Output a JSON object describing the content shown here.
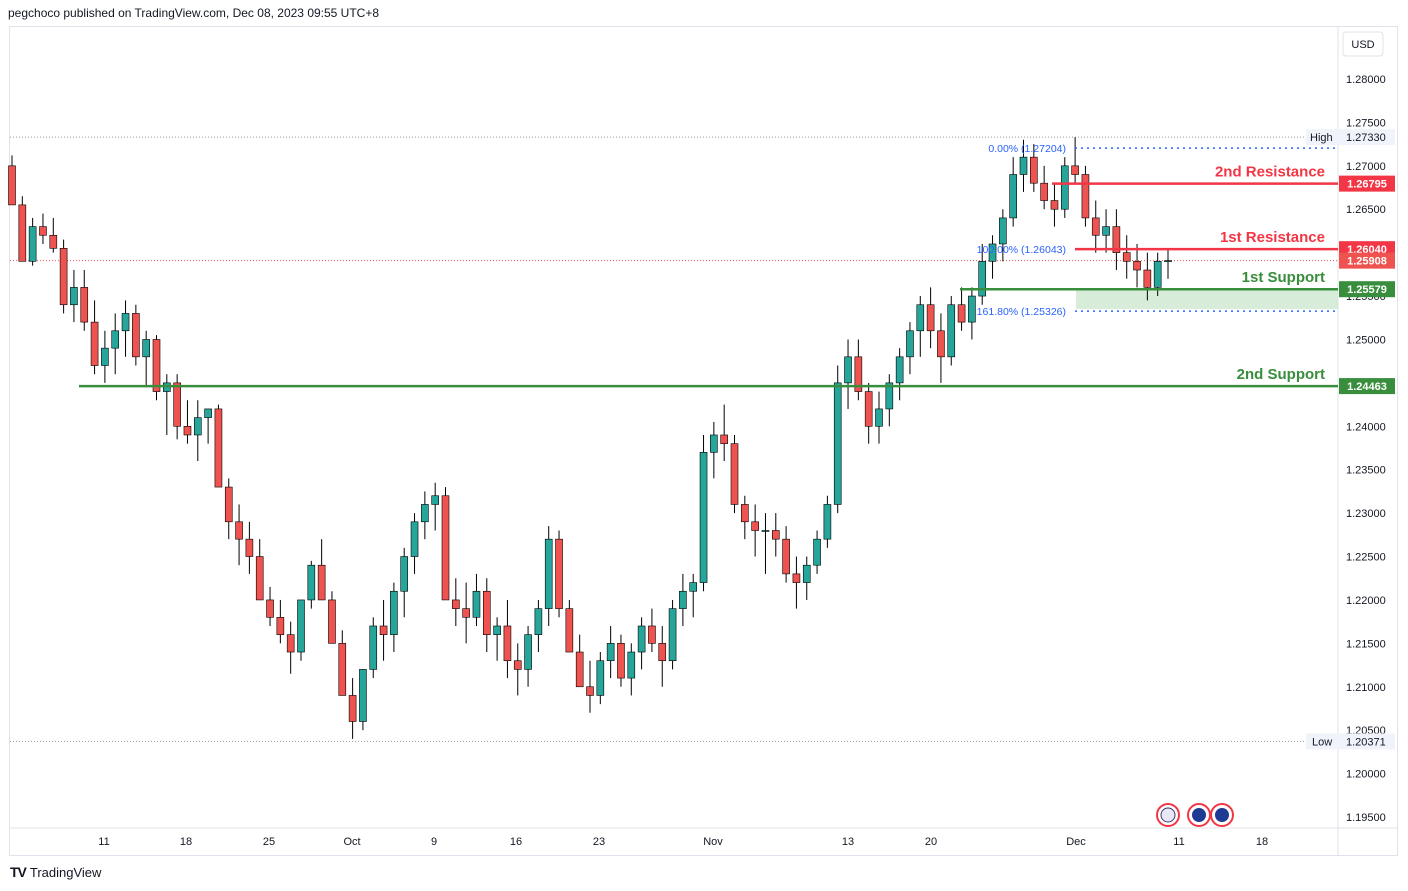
{
  "header": {
    "publisher_line": "pegchoco published on TradingView.com, Dec 08, 2023 09:55 UTC+8"
  },
  "footer": {
    "logo_text": "TradingView"
  },
  "currency_button": "USD",
  "colors": {
    "up": "#26a69a",
    "down": "#ef5350",
    "resistance": "#f23645",
    "support": "#388e3c",
    "fib": "#2962ff",
    "zone": "#c8e6c9",
    "axis_text": "#131722"
  },
  "chart_data": {
    "type": "candlestick",
    "symbol_currency": "USD",
    "ylim": [
      1.1945,
      1.2835
    ],
    "y_ticks": [
      "1.28000",
      "1.27500",
      "1.27000",
      "1.26500",
      "1.26000",
      "1.25500",
      "1.25000",
      "1.24500",
      "1.24000",
      "1.23500",
      "1.23000",
      "1.22500",
      "1.22000",
      "1.21500",
      "1.21000",
      "1.20500",
      "1.20000",
      "1.19500"
    ],
    "x_ticks": [
      "11",
      "18",
      "25",
      "Oct",
      "9",
      "16",
      "23",
      "Nov",
      "13",
      "20",
      "Dec",
      "11",
      "18"
    ],
    "price_path": [
      [
        1.27,
        1.2712,
        1.2655
      ],
      [
        1.2655,
        1.2665,
        1.259
      ],
      [
        1.259,
        1.264,
        1.2585
      ],
      [
        1.263,
        1.2645,
        1.261
      ],
      [
        1.262,
        1.264,
        1.26
      ],
      [
        1.2605,
        1.2615,
        1.253
      ],
      [
        1.254,
        1.258,
        1.252
      ],
      [
        1.256,
        1.258,
        1.251
      ],
      [
        1.252,
        1.2545,
        1.246
      ],
      [
        1.247,
        1.251,
        1.245
      ],
      [
        1.249,
        1.253,
        1.246
      ],
      [
        1.251,
        1.2545,
        1.248
      ],
      [
        1.253,
        1.254,
        1.247
      ],
      [
        1.248,
        1.251,
        1.2445
      ],
      [
        1.25,
        1.2505,
        1.243
      ],
      [
        1.244,
        1.246,
        1.239
      ],
      [
        1.245,
        1.246,
        1.2385
      ],
      [
        1.24,
        1.243,
        1.238
      ],
      [
        1.239,
        1.243,
        1.236
      ],
      [
        1.241,
        1.242,
        1.238
      ],
      [
        1.242,
        1.2425,
        1.234
      ],
      [
        1.233,
        1.234,
        1.227
      ],
      [
        1.229,
        1.231,
        1.224
      ],
      [
        1.227,
        1.229,
        1.223
      ],
      [
        1.225,
        1.227,
        1.22
      ],
      [
        1.22,
        1.2215,
        1.217
      ],
      [
        1.218,
        1.22,
        1.215
      ],
      [
        1.216,
        1.2175,
        1.2115
      ],
      [
        1.214,
        1.22,
        1.213
      ],
      [
        1.22,
        1.2245,
        1.219
      ],
      [
        1.224,
        1.227,
        1.22
      ],
      [
        1.22,
        1.221,
        1.215
      ],
      [
        1.215,
        1.2165,
        1.209
      ],
      [
        1.209,
        1.211,
        1.204
      ],
      [
        1.206,
        1.212,
        1.205
      ],
      [
        1.212,
        1.218,
        1.211
      ],
      [
        1.217,
        1.22,
        1.213
      ],
      [
        1.216,
        1.222,
        1.214
      ],
      [
        1.221,
        1.226,
        1.218
      ],
      [
        1.225,
        1.23,
        1.223
      ],
      [
        1.229,
        1.2325,
        1.227
      ],
      [
        1.231,
        1.2335,
        1.228
      ],
      [
        1.232,
        1.233,
        1.22
      ],
      [
        1.22,
        1.2225,
        1.217
      ],
      [
        1.219,
        1.222,
        1.215
      ],
      [
        1.218,
        1.223,
        1.217
      ],
      [
        1.221,
        1.2225,
        1.214
      ],
      [
        1.216,
        1.218,
        1.213
      ],
      [
        1.217,
        1.22,
        1.211
      ],
      [
        1.213,
        1.215,
        1.209
      ],
      [
        1.212,
        1.217,
        1.21
      ],
      [
        1.216,
        1.22,
        1.214
      ],
      [
        1.219,
        1.2285,
        1.217
      ],
      [
        1.227,
        1.228,
        1.218
      ],
      [
        1.219,
        1.22,
        1.214
      ],
      [
        1.214,
        1.216,
        1.21
      ],
      [
        1.21,
        1.213,
        1.207
      ],
      [
        1.209,
        1.214,
        1.208
      ],
      [
        1.213,
        1.217,
        1.211
      ],
      [
        1.215,
        1.216,
        1.21
      ],
      [
        1.211,
        1.215,
        1.209
      ],
      [
        1.214,
        1.218,
        1.212
      ],
      [
        1.217,
        1.219,
        1.214
      ],
      [
        1.215,
        1.217,
        1.21
      ],
      [
        1.213,
        1.22,
        1.212
      ],
      [
        1.219,
        1.223,
        1.217
      ],
      [
        1.221,
        1.223,
        1.218
      ],
      [
        1.222,
        1.239,
        1.221
      ],
      [
        1.237,
        1.2405,
        1.234
      ],
      [
        1.239,
        1.2425,
        1.236
      ],
      [
        1.238,
        1.239,
        1.23
      ],
      [
        1.231,
        1.232,
        1.227
      ],
      [
        1.229,
        1.231,
        1.225
      ],
      [
        1.228,
        1.23,
        1.223
      ],
      [
        1.228,
        1.23,
        1.225
      ],
      [
        1.227,
        1.2285,
        1.222
      ],
      [
        1.223,
        1.225,
        1.219
      ],
      [
        1.222,
        1.225,
        1.22
      ],
      [
        1.224,
        1.228,
        1.223
      ],
      [
        1.227,
        1.232,
        1.226
      ],
      [
        1.231,
        1.247,
        1.23
      ],
      [
        1.245,
        1.25,
        1.242
      ],
      [
        1.248,
        1.25,
        1.243
      ],
      [
        1.244,
        1.245,
        1.238
      ],
      [
        1.24,
        1.244,
        1.238
      ],
      [
        1.242,
        1.246,
        1.24
      ],
      [
        1.245,
        1.249,
        1.243
      ],
      [
        1.248,
        1.252,
        1.246
      ],
      [
        1.251,
        1.255,
        1.248
      ],
      [
        1.254,
        1.256,
        1.249
      ],
      [
        1.251,
        1.253,
        1.245
      ],
      [
        1.248,
        1.255,
        1.247
      ],
      [
        1.254,
        1.256,
        1.251
      ],
      [
        1.252,
        1.256,
        1.25
      ],
      [
        1.255,
        1.261,
        1.254
      ],
      [
        1.259,
        1.262,
        1.257
      ],
      [
        1.261,
        1.265,
        1.259
      ],
      [
        1.264,
        1.271,
        1.263
      ],
      [
        1.269,
        1.273,
        1.267
      ],
      [
        1.271,
        1.2725,
        1.267
      ],
      [
        1.268,
        1.27,
        1.265
      ],
      [
        1.266,
        1.268,
        1.263
      ],
      [
        1.265,
        1.271,
        1.264
      ],
      [
        1.27,
        1.2733,
        1.268
      ],
      [
        1.269,
        1.27,
        1.263
      ],
      [
        1.264,
        1.266,
        1.26
      ],
      [
        1.262,
        1.265,
        1.26
      ],
      [
        1.263,
        1.265,
        1.258
      ],
      [
        1.26,
        1.262,
        1.257
      ],
      [
        1.259,
        1.261,
        1.256
      ],
      [
        1.258,
        1.26,
        1.2545
      ],
      [
        1.256,
        1.26,
        1.255
      ],
      [
        1.259,
        1.2605,
        1.257
      ]
    ],
    "high": {
      "label": "High",
      "value": "1.27330"
    },
    "low": {
      "label": "Low",
      "value": "1.20371"
    },
    "last_price": "1.25908",
    "levels": [
      {
        "name": "2nd Resistance",
        "value": "1.26795",
        "y": 1.26795,
        "kind": "resistance"
      },
      {
        "name": "1st Resistance",
        "value": "1.26040",
        "y": 1.2604,
        "kind": "resistance"
      },
      {
        "name": "1st Support",
        "value": "1.25579",
        "y": 1.25579,
        "kind": "support"
      },
      {
        "name": "2nd Support",
        "value": "1.24463",
        "y": 1.24463,
        "kind": "support"
      }
    ],
    "fibonacci": [
      {
        "label": "0.00% (1.27204)",
        "y": 1.27204
      },
      {
        "label": "100.00% (1.26043)",
        "y": 1.26043
      },
      {
        "label": "161.80% (1.25326)",
        "y": 1.25326
      }
    ]
  }
}
